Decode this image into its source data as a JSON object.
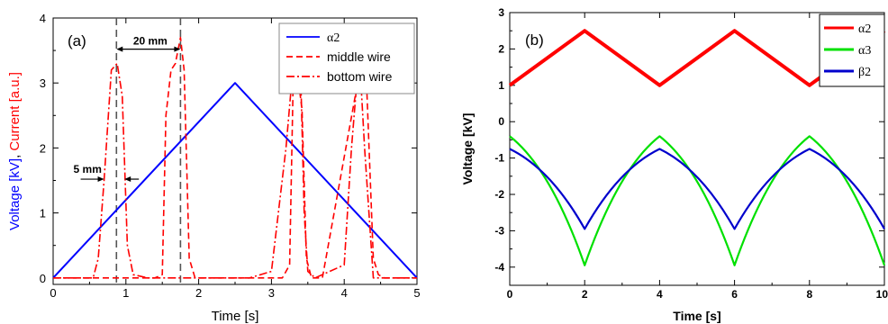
{
  "chart_data": [
    {
      "type": "line",
      "panel_label": "(a)",
      "xlabel": "Time [s]",
      "ylabel_parts": [
        {
          "text": "Voltage [kV]",
          "color": "#0000ff"
        },
        {
          "text": ", ",
          "color": "#000000"
        },
        {
          "text": "Current [a.u.]",
          "color": "#ff0000"
        }
      ],
      "xlim": [
        0,
        5
      ],
      "ylim": [
        -0.1,
        4
      ],
      "xticks": [
        "0",
        "1",
        "2",
        "3",
        "4",
        "5"
      ],
      "yticks": [
        "0",
        "1",
        "2",
        "3",
        "4"
      ],
      "legend_position": "top-right",
      "series": [
        {
          "name": "α2",
          "color": "#0000ff",
          "style": "solid",
          "x": [
            0,
            2.5,
            5
          ],
          "y": [
            0,
            3.0,
            0
          ]
        },
        {
          "name": "middle wire",
          "color": "#ff0000",
          "style": "dashed",
          "x": [
            0,
            1.4,
            1.5,
            1.55,
            1.62,
            1.68,
            1.75,
            1.8,
            1.87,
            1.95,
            2.8,
            3.15,
            3.25,
            3.3,
            3.35,
            3.42,
            3.48,
            3.55,
            3.7,
            4.2,
            4.3,
            4.4,
            4.47,
            4.55,
            5
          ],
          "y": [
            0,
            0,
            0.05,
            2.5,
            3.2,
            3.3,
            3.7,
            3.2,
            0.3,
            0,
            0,
            0,
            0.2,
            3.1,
            3.2,
            2.6,
            0.3,
            0,
            0,
            3.1,
            3.2,
            0.3,
            0.05,
            0,
            0
          ]
        },
        {
          "name": "bottom wire",
          "color": "#ff0000",
          "style": "dashdot",
          "x": [
            0,
            0.55,
            0.62,
            0.7,
            0.8,
            0.88,
            0.95,
            1.02,
            1.1,
            1.3,
            2.0,
            2.7,
            3.0,
            3.2,
            3.3,
            3.4,
            3.45,
            3.5,
            3.6,
            4.0,
            4.1,
            4.18,
            4.22,
            4.28,
            4.4,
            5
          ],
          "y": [
            0,
            0,
            0.3,
            1.5,
            3.2,
            3.3,
            2.8,
            0.5,
            0.05,
            0,
            0,
            0,
            0.1,
            2.0,
            3.3,
            3.2,
            1.0,
            0.1,
            0,
            0.2,
            2.0,
            3.1,
            3.2,
            2.0,
            0,
            0
          ]
        }
      ],
      "annotations": [
        {
          "text": "20 mm",
          "x_from": 0.87,
          "x_to": 1.75,
          "y": 3.52
        },
        {
          "text": "5 mm",
          "x_from": 0.7,
          "x_to": 0.98,
          "y": 1.52
        }
      ],
      "reference_lines_x": [
        0.87,
        1.75
      ]
    },
    {
      "type": "line",
      "panel_label": "(b)",
      "xlabel": "Time [s]",
      "ylabel": "Voltage [kV]",
      "xlim": [
        0,
        10
      ],
      "ylim": [
        -4.5,
        3
      ],
      "xticks": [
        "0",
        "2",
        "4",
        "6",
        "8",
        "10"
      ],
      "yticks": [
        "3",
        "2",
        "1",
        "0",
        "-1",
        "-2",
        "-3",
        "-4"
      ],
      "legend_position": "top-right",
      "series": [
        {
          "name": "α2",
          "color": "#ff0000",
          "style": "solid",
          "x": [
            0,
            2,
            4,
            6,
            8,
            10
          ],
          "y": [
            1.0,
            2.5,
            1.0,
            2.5,
            1.0,
            2.5
          ]
        },
        {
          "name": "α3",
          "color": "#00e000",
          "style": "solid",
          "x": [
            0,
            2,
            4,
            6,
            8,
            10
          ],
          "y": [
            -0.4,
            -3.95,
            -0.4,
            -3.95,
            -0.4,
            -3.95
          ]
        },
        {
          "name": "β2",
          "color": "#0000cc",
          "style": "solid",
          "x": [
            0,
            2,
            4,
            6,
            8,
            10
          ],
          "y": [
            -0.75,
            -2.95,
            -0.75,
            -2.95,
            -0.75,
            -2.95
          ]
        }
      ]
    }
  ]
}
